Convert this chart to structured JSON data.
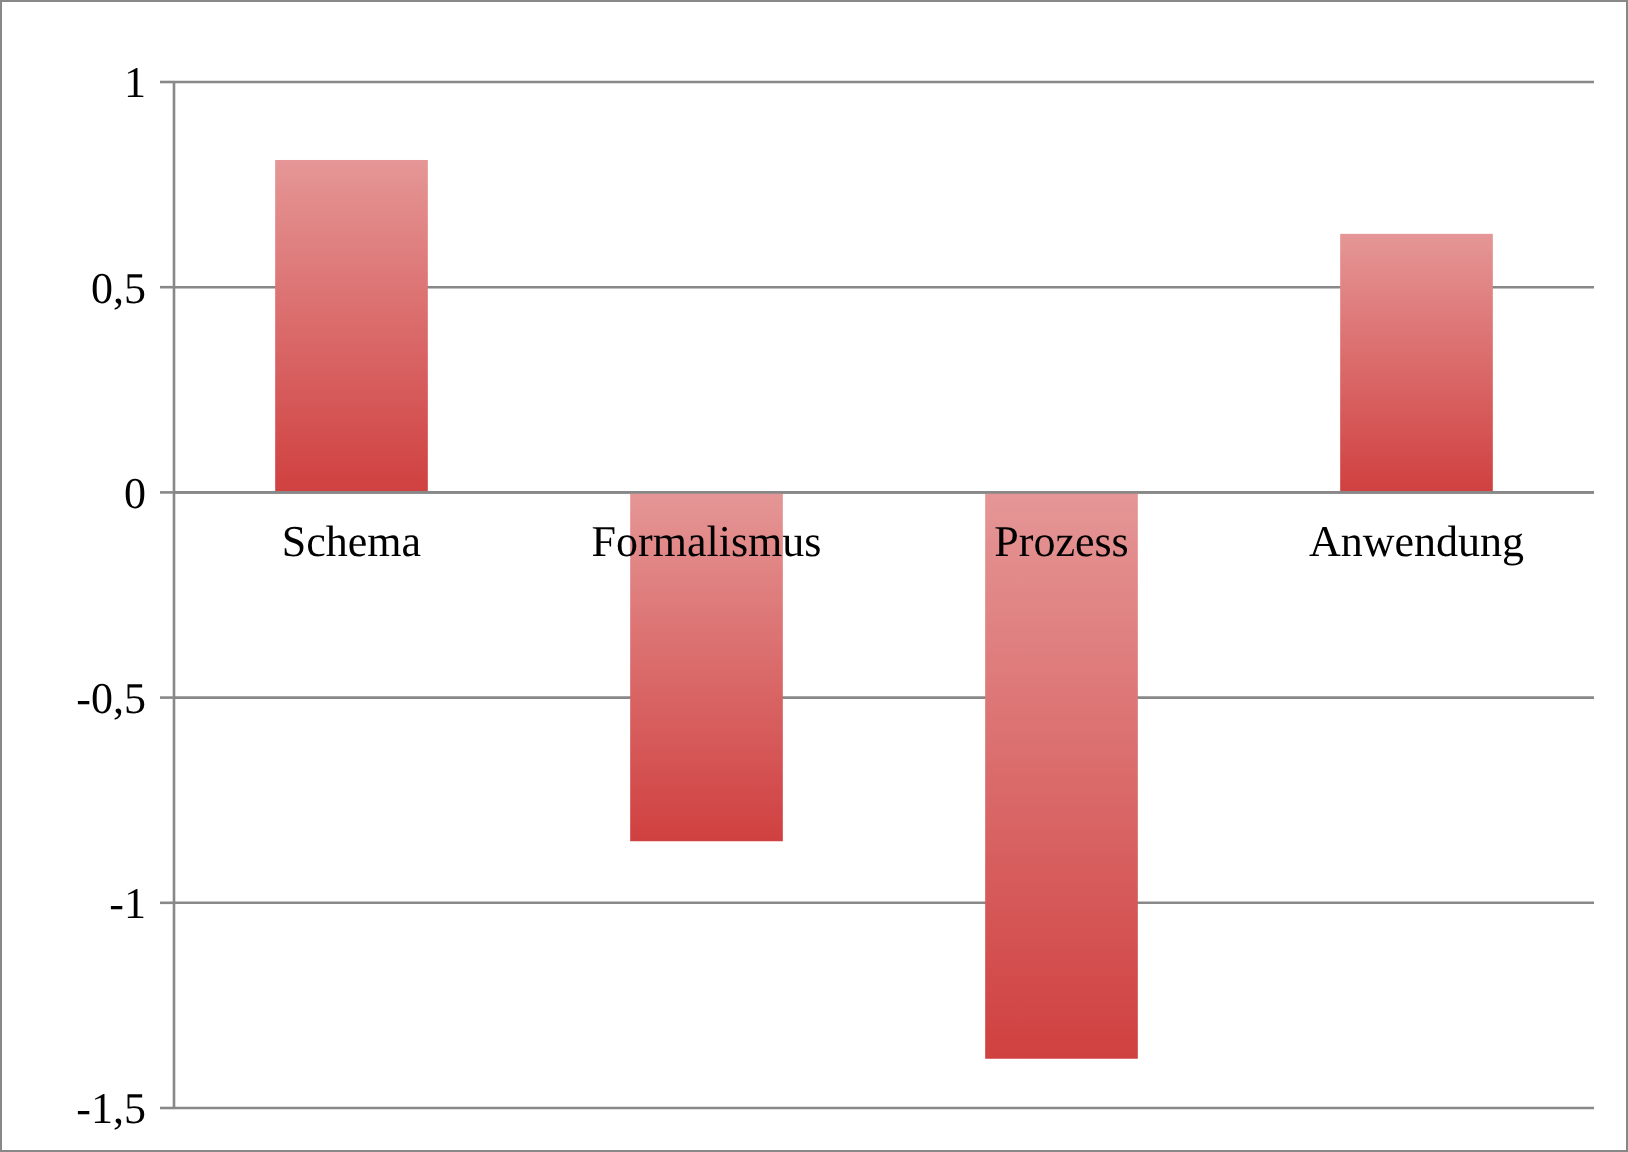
{
  "chart_data": {
    "type": "bar",
    "categories": [
      "Schema",
      "Formalismus",
      "Prozess",
      "Anwendung"
    ],
    "values": [
      0.81,
      -0.85,
      -1.38,
      0.63
    ],
    "color": "#d04040",
    "ylim": [
      -1.5,
      1
    ],
    "yticks": [
      {
        "value": -1.5,
        "label": "-1,5"
      },
      {
        "value": -1,
        "label": "-1"
      },
      {
        "value": -0.5,
        "label": "-0,5"
      },
      {
        "value": 0,
        "label": "0"
      },
      {
        "value": 0.5,
        "label": "0,5"
      },
      {
        "value": 1,
        "label": "1"
      }
    ],
    "grid": "y"
  }
}
